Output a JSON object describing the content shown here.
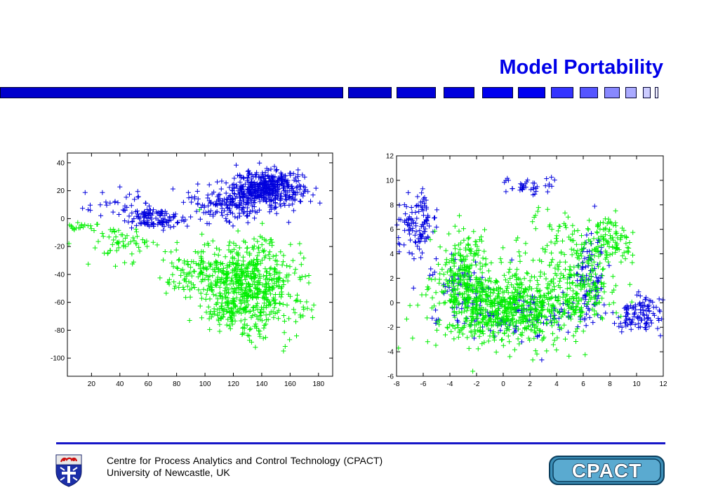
{
  "slide": {
    "title": "Model Portability",
    "footer_line1": "Centre for Process Analytics and Control Technology   (CPACT)",
    "footer_line2": "University of Newcastle, UK",
    "logo_text": "CPACT",
    "colors": {
      "title": "#0000e8",
      "bar_dark": "#0000cc",
      "rule": "#1515c8",
      "series_a": "#0000dd",
      "series_b": "#00ee00"
    }
  },
  "chart_data": [
    {
      "type": "scatter",
      "title": "",
      "xlabel": "",
      "ylabel": "",
      "xlim": [
        3,
        190
      ],
      "ylim": [
        -113,
        47
      ],
      "xticks": [
        20,
        40,
        60,
        80,
        100,
        120,
        140,
        160,
        180
      ],
      "yticks": [
        -100,
        -80,
        -60,
        -40,
        -20,
        0,
        20,
        40
      ],
      "grid": false,
      "marker": "+",
      "series": [
        {
          "color": "#0000dd",
          "clusters": [
            {
              "cx": 145,
              "cy": 22,
              "sx": 12,
              "sy": 6,
              "n": 420
            },
            {
              "cx": 118,
              "cy": 12,
              "sx": 14,
              "sy": 7,
              "n": 180
            },
            {
              "cx": 65,
              "cy": 0,
              "sx": 12,
              "sy": 4,
              "n": 120
            },
            {
              "cx": 40,
              "cy": 10,
              "sx": 14,
              "sy": 4,
              "n": 30
            }
          ]
        },
        {
          "color": "#00ee00",
          "clusters": [
            {
              "cx": 130,
              "cy": -50,
              "sx": 16,
              "sy": 16,
              "n": 650
            },
            {
              "cx": 95,
              "cy": -40,
              "sx": 12,
              "sy": 10,
              "n": 120
            },
            {
              "cx": 42,
              "cy": -18,
              "sx": 12,
              "sy": 6,
              "n": 60
            },
            {
              "cx": 12,
              "cy": -6,
              "sx": 6,
              "sy": 2,
              "n": 20
            },
            {
              "cx": 165,
              "cy": -65,
              "sx": 6,
              "sy": 5,
              "n": 20
            }
          ]
        }
      ]
    },
    {
      "type": "scatter",
      "title": "",
      "xlabel": "",
      "ylabel": "",
      "xlim": [
        -8,
        12
      ],
      "ylim": [
        -6,
        12
      ],
      "xticks": [
        -8,
        -6,
        -4,
        -2,
        0,
        2,
        4,
        6,
        8,
        10,
        12
      ],
      "yticks": [
        -6,
        -4,
        -2,
        0,
        2,
        4,
        6,
        8,
        10,
        12
      ],
      "grid": false,
      "marker": "+",
      "series": [
        {
          "color": "#0000dd",
          "clusters": [
            {
              "cx": -6.5,
              "cy": 6.5,
              "sx": 0.8,
              "sy": 1.2,
              "n": 120
            },
            {
              "cx": -3,
              "cy": 1,
              "sx": 1.2,
              "sy": 1.5,
              "n": 80
            },
            {
              "cx": 10,
              "cy": -1,
              "sx": 0.9,
              "sy": 0.8,
              "n": 110
            },
            {
              "cx": 6.5,
              "cy": 2,
              "sx": 0.6,
              "sy": 1.8,
              "n": 90
            },
            {
              "cx": 2,
              "cy": 9.5,
              "sx": 1.2,
              "sy": 0.3,
              "n": 40
            },
            {
              "cx": 2,
              "cy": -1,
              "sx": 2.5,
              "sy": 1,
              "n": 120
            }
          ]
        },
        {
          "color": "#00ee00",
          "clusters": [
            {
              "cx": 0,
              "cy": -0.5,
              "sx": 2.6,
              "sy": 1.5,
              "n": 700
            },
            {
              "cx": -3,
              "cy": 2.5,
              "sx": 1,
              "sy": 1.6,
              "n": 200
            },
            {
              "cx": 5.5,
              "cy": 1.5,
              "sx": 1.5,
              "sy": 2,
              "n": 220
            },
            {
              "cx": 8,
              "cy": 5,
              "sx": 0.8,
              "sy": 1,
              "n": 100
            },
            {
              "cx": 3.5,
              "cy": 5.5,
              "sx": 1.5,
              "sy": 1,
              "n": 40
            }
          ]
        }
      ]
    }
  ]
}
